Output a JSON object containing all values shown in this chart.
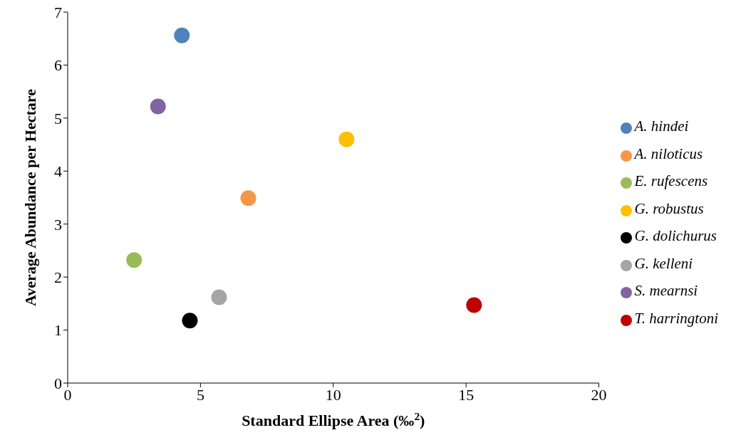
{
  "chart_data": {
    "type": "scatter",
    "xlabel": "Standard Ellipse Area (‰$^{2}$)",
    "ylabel": "Average Abundance per Hectare",
    "xlim": [
      0,
      20
    ],
    "xticks": [
      0,
      5,
      10,
      15,
      20
    ],
    "ylim": [
      0,
      7
    ],
    "yticks": [
      0,
      1,
      2,
      3,
      4,
      5,
      6,
      7
    ],
    "grid": false,
    "legend": "right",
    "marker": "circle",
    "series": [
      {
        "name": "A. hindei",
        "color": "#4f81bd",
        "x": [
          4.3
        ],
        "values": [
          6.56
        ]
      },
      {
        "name": "A. niloticus",
        "color": "#f79646",
        "x": [
          6.8
        ],
        "values": [
          3.49
        ]
      },
      {
        "name": "E. rufescens",
        "color": "#9bbb59",
        "x": [
          2.5
        ],
        "values": [
          2.32
        ]
      },
      {
        "name": "G. robustus",
        "color": "#ffc000",
        "x": [
          10.5
        ],
        "values": [
          4.6
        ]
      },
      {
        "name": "G. dolichurus",
        "color": "#000000",
        "x": [
          4.6
        ],
        "values": [
          1.18
        ]
      },
      {
        "name": "G. kelleni",
        "color": "#a5a5a5",
        "x": [
          5.7
        ],
        "values": [
          1.62
        ]
      },
      {
        "name": "S. mearnsi",
        "color": "#8064a2",
        "x": [
          3.4
        ],
        "values": [
          5.22
        ]
      },
      {
        "name": "T. harringtoni",
        "color": "#c00000",
        "x": [
          15.3
        ],
        "values": [
          1.47
        ]
      }
    ]
  }
}
